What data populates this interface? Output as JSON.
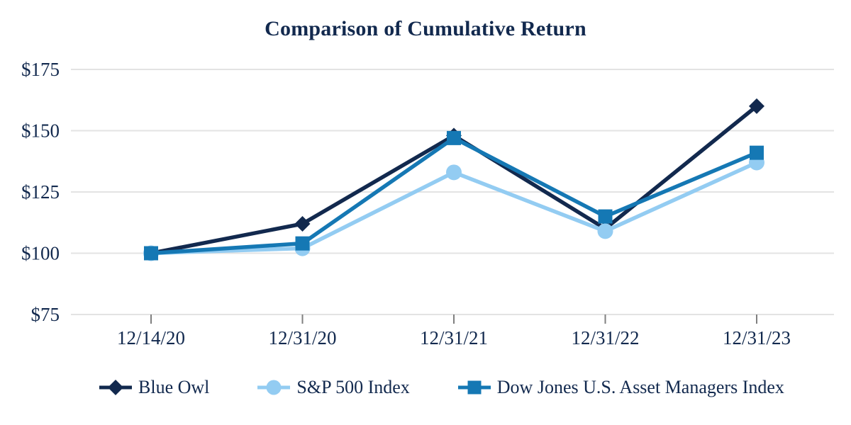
{
  "chart": {
    "title": "Comparison of Cumulative Return"
  },
  "chart_data": {
    "type": "line",
    "title": "Comparison of Cumulative Return",
    "categories": [
      "12/14/20",
      "12/31/20",
      "12/31/21",
      "12/31/22",
      "12/31/23"
    ],
    "series": [
      {
        "name": "Blue Owl",
        "marker": "diamond",
        "color": "#12294E",
        "values": [
          100,
          112,
          148,
          110,
          160
        ]
      },
      {
        "name": "S&P 500 Index",
        "marker": "circle",
        "color": "#93CCF2",
        "values": [
          100,
          102,
          133,
          109,
          137
        ]
      },
      {
        "name": "Dow Jones U.S. Asset Managers Index",
        "marker": "square",
        "color": "#1578B4",
        "values": [
          100,
          104,
          147,
          115,
          141
        ]
      }
    ],
    "y_axis": {
      "min": 75,
      "max": 175,
      "ticks": [
        75,
        100,
        125,
        150,
        175
      ],
      "tick_labels": [
        "$75",
        "$100",
        "$125",
        "$150",
        "$175"
      ],
      "prefix": "$"
    },
    "x_axis": {
      "tick_labels": [
        "12/14/20",
        "12/31/20",
        "12/31/21",
        "12/31/22",
        "12/31/23"
      ]
    },
    "grid": "horizontal-only",
    "legend_position": "bottom",
    "styles": {
      "grid_color": "#E3E3E3",
      "tick_color": "#7F7F7F",
      "text_color": "#12294E",
      "background": "#FFFFFF"
    }
  }
}
